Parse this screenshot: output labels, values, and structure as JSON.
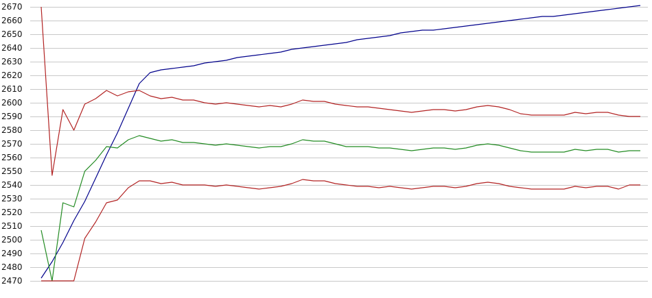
{
  "chart_data": {
    "type": "line",
    "title": "",
    "xlabel": "",
    "ylabel": "",
    "ylim": [
      2470,
      2670
    ],
    "yticks": [
      2470,
      2480,
      2490,
      2500,
      2510,
      2520,
      2530,
      2540,
      2550,
      2560,
      2570,
      2580,
      2590,
      2600,
      2610,
      2620,
      2630,
      2640,
      2650,
      2660,
      2670
    ],
    "x_count": 56,
    "grid": true,
    "legend": "none",
    "series": [
      {
        "color": "#00008b",
        "values": [
          2472,
          2484,
          2498,
          2514,
          2528,
          2545,
          2562,
          2578,
          2596,
          2614,
          2622,
          2624,
          2625,
          2626,
          2627,
          2629,
          2630,
          2631,
          2633,
          2634,
          2635,
          2636,
          2637,
          2639,
          2640,
          2641,
          2642,
          2643,
          2644,
          2646,
          2647,
          2648,
          2649,
          2651,
          2652,
          2653,
          2653,
          2654,
          2655,
          2656,
          2657,
          2658,
          2659,
          2660,
          2661,
          2662,
          2663,
          2663,
          2664,
          2665,
          2666,
          2667,
          2668,
          2669,
          2670,
          2671
        ]
      },
      {
        "color": "#b22222",
        "values": [
          2670,
          2547,
          2595,
          2580,
          2599,
          2603,
          2609,
          2605,
          2608,
          2609,
          2605,
          2603,
          2604,
          2602,
          2602,
          2600,
          2599,
          2600,
          2599,
          2598,
          2597,
          2598,
          2597,
          2599,
          2602,
          2601,
          2601,
          2599,
          2598,
          2597,
          2597,
          2596,
          2595,
          2594,
          2593,
          2594,
          2595,
          2595,
          2594,
          2595,
          2597,
          2598,
          2597,
          2595,
          2592,
          2591,
          2591,
          2591,
          2591,
          2593,
          2592,
          2593,
          2593,
          2591,
          2590,
          2590
        ]
      },
      {
        "color": "#228b22",
        "values": [
          2507,
          2470,
          2527,
          2524,
          2550,
          2558,
          2568,
          2567,
          2573,
          2576,
          2574,
          2572,
          2573,
          2571,
          2571,
          2570,
          2569,
          2570,
          2569,
          2568,
          2567,
          2568,
          2568,
          2570,
          2573,
          2572,
          2572,
          2570,
          2568,
          2568,
          2568,
          2567,
          2567,
          2566,
          2565,
          2566,
          2567,
          2567,
          2566,
          2567,
          2569,
          2570,
          2569,
          2567,
          2565,
          2564,
          2564,
          2564,
          2564,
          2566,
          2565,
          2566,
          2566,
          2564,
          2565,
          2565
        ]
      },
      {
        "color": "#b22222",
        "values": [
          2470,
          2470,
          2470,
          2470,
          2501,
          2513,
          2527,
          2529,
          2538,
          2543,
          2543,
          2541,
          2542,
          2540,
          2540,
          2540,
          2539,
          2540,
          2539,
          2538,
          2537,
          2538,
          2539,
          2541,
          2544,
          2543,
          2543,
          2541,
          2540,
          2539,
          2539,
          2538,
          2539,
          2538,
          2537,
          2538,
          2539,
          2539,
          2538,
          2539,
          2541,
          2542,
          2541,
          2539,
          2538,
          2537,
          2537,
          2537,
          2537,
          2539,
          2538,
          2539,
          2539,
          2537,
          2540,
          2540
        ]
      }
    ]
  }
}
